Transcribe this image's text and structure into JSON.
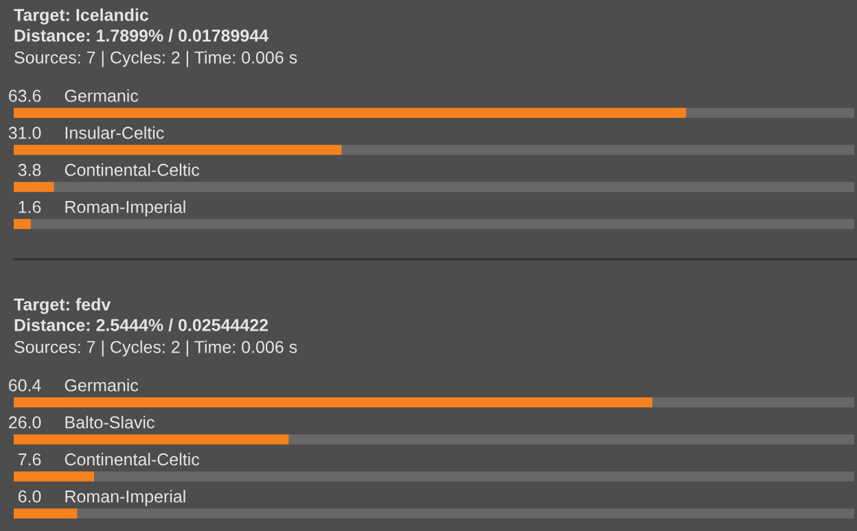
{
  "chart_data": [
    {
      "type": "bar",
      "orientation": "horizontal",
      "title": "Target: Icelandic",
      "subtitle": "Distance: 1.7899% / 0.01789944",
      "annotations": [
        "Sources: 7 | Cycles: 2 | Time: 0.006 s"
      ],
      "categories": [
        "Germanic",
        "Insular-Celtic",
        "Continental-Celtic",
        "Roman-Imperial"
      ],
      "values": [
        63.6,
        31.0,
        3.8,
        1.6
      ],
      "value_labels": [
        "63.6",
        "31.0",
        "3.8",
        "1.6"
      ],
      "color": "#f5821f",
      "tick_labels": false
    },
    {
      "type": "bar",
      "orientation": "horizontal",
      "title": "Target: fedv",
      "subtitle": "Distance: 2.5444% / 0.02544422",
      "annotations": [
        "Sources: 7 | Cycles: 2 | Time: 0.006 s"
      ],
      "categories": [
        "Germanic",
        "Balto-Slavic",
        "Continental-Celtic",
        "Roman-Imperial"
      ],
      "values": [
        60.4,
        26.0,
        7.6,
        6.0
      ],
      "value_labels": [
        "60.4",
        "26.0",
        "7.6",
        "6.0"
      ],
      "color": "#f5821f",
      "tick_labels": false
    }
  ]
}
